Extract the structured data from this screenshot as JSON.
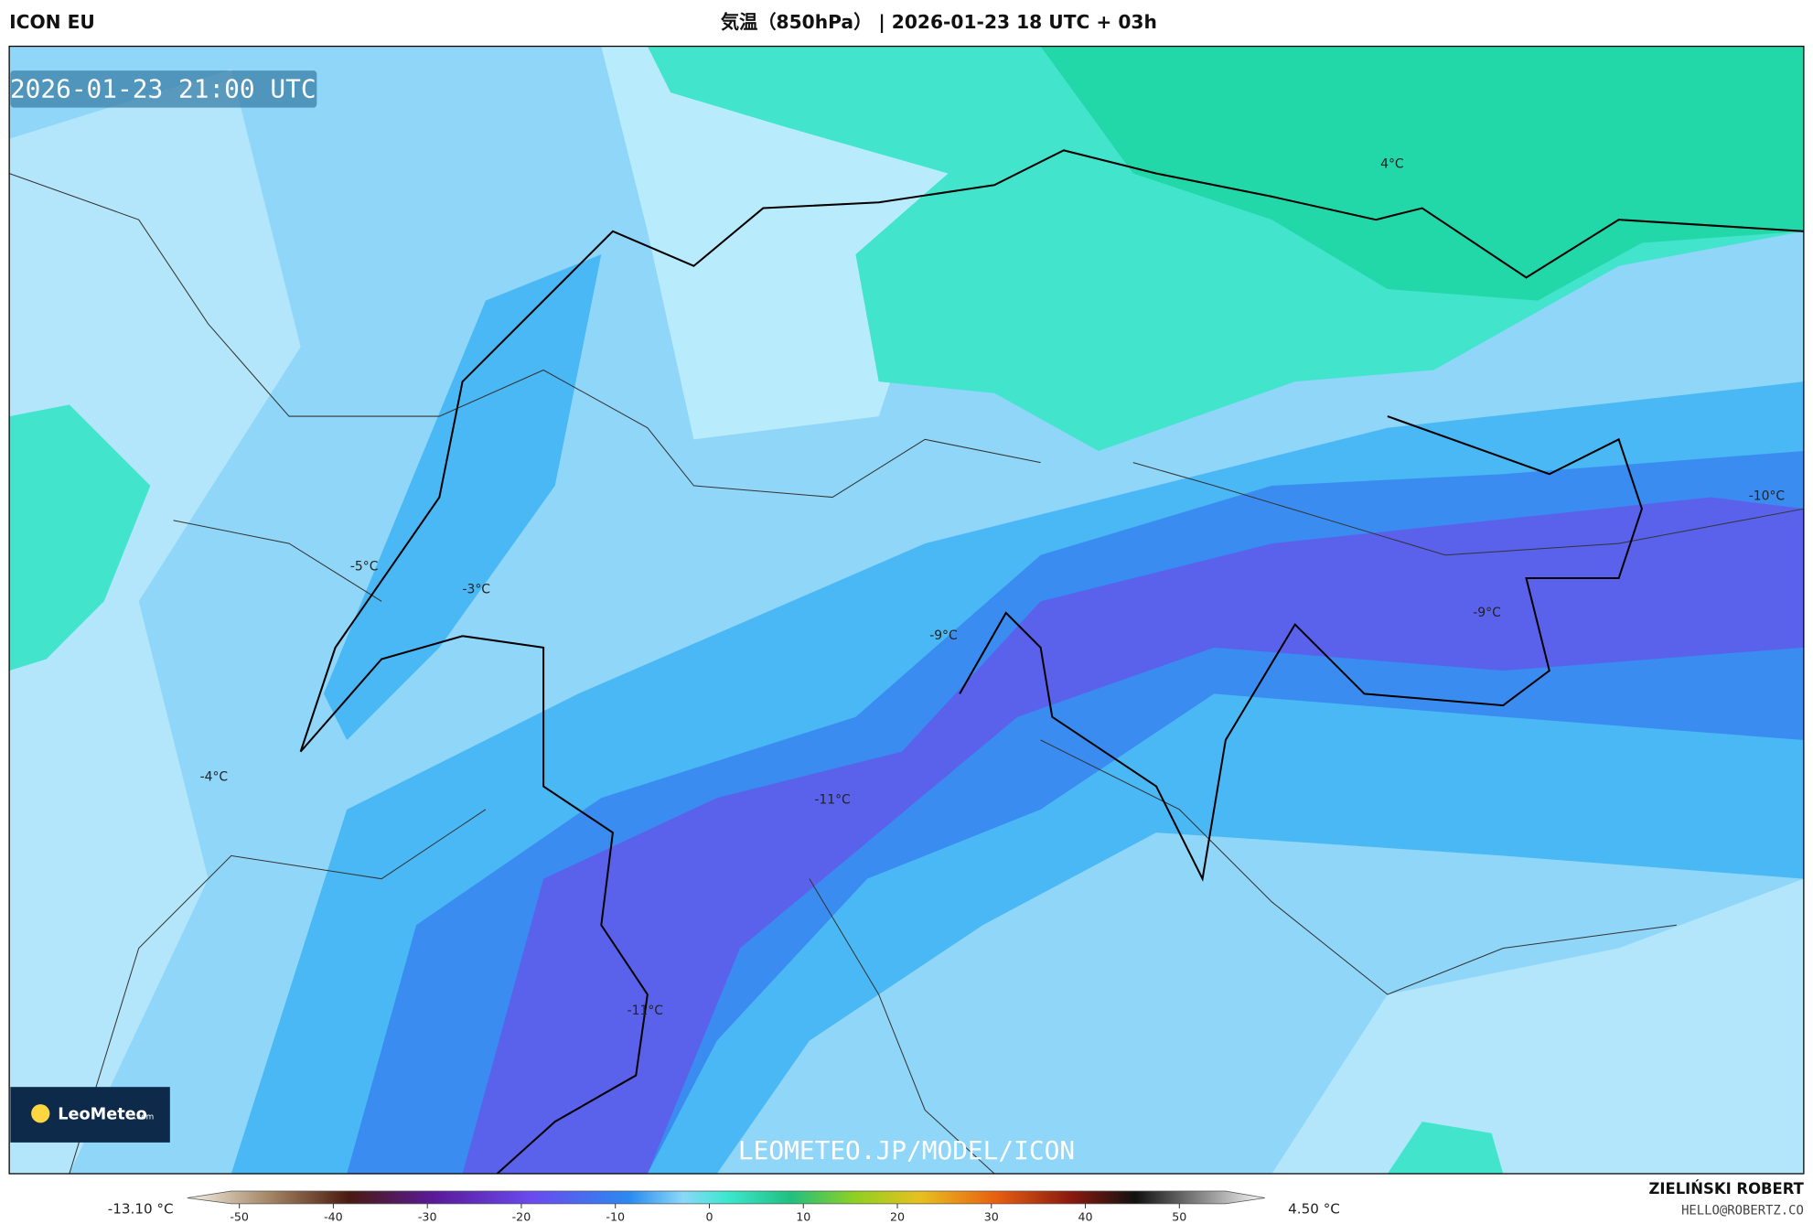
{
  "header": {
    "model": "ICON EU",
    "title": "気温（850hPa） | 2026-01-23 18 UTC + 03h"
  },
  "map": {
    "timestamp": "2026-01-23 21:00 UTC",
    "contour_labels": [
      "4°C",
      "-10°C",
      "-5°C",
      "-3°C",
      "-9°C",
      "-9°C",
      "-4°C",
      "-11°C",
      "-11°C"
    ],
    "watermark": "LEOMETEO.JP/MODEL/ICON",
    "logo": {
      "name": "LeoMeteo",
      "suffix": ".com"
    }
  },
  "colorbar": {
    "min_label": "-13.10 °C",
    "max_label": "4.50 °C",
    "ticks": [
      -50,
      -40,
      -30,
      -20,
      -10,
      0,
      10,
      20,
      30,
      40,
      50
    ]
  },
  "footer": {
    "author": "ZIELIŃSKI ROBERT",
    "email": "HELLO@ROBERTZ.CO"
  }
}
